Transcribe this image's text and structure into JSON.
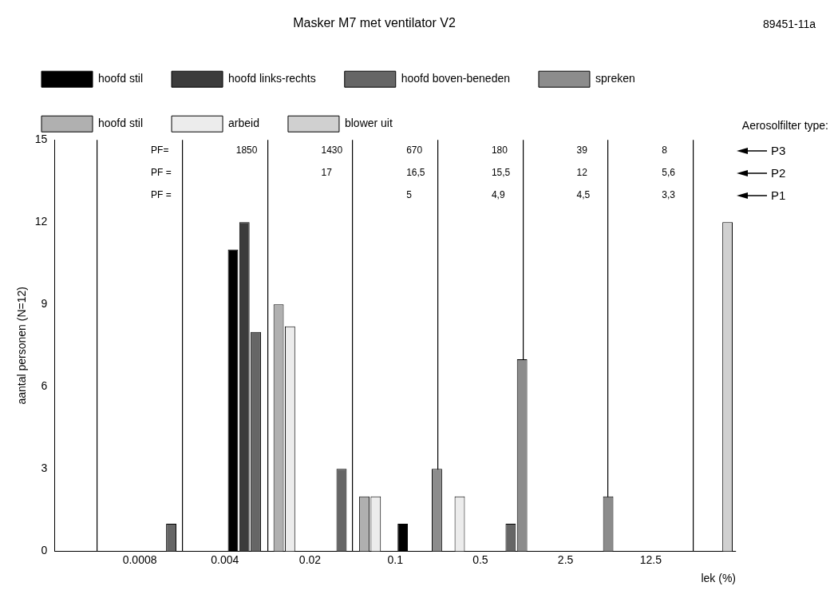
{
  "chart_data": {
    "type": "bar",
    "title": "Masker M7 met ventilator V2",
    "xlabel": "lek (%)",
    "ylabel": "aantal personen (N=12)",
    "log": "x",
    "xlim": [
      0.00016,
      62.5
    ],
    "xticks": [
      0.0008,
      0.004,
      0.02,
      0.1,
      0.5,
      2.5,
      12.5
    ],
    "ylim": [
      0,
      15
    ],
    "yticks": [
      0,
      3,
      6,
      9,
      12,
      15
    ],
    "x": [
      0.0018,
      0.0089,
      0.045,
      0.22,
      1.1,
      5.6,
      28
    ],
    "grid": "x",
    "legend": "top",
    "series": [
      {
        "name": "hoofd stil",
        "color": "#000000",
        "values": [
          null,
          11,
          null,
          1,
          null,
          null,
          null
        ]
      },
      {
        "name": "hoofd links-rechts",
        "color": "#3c3c3c",
        "values": [
          null,
          12,
          null,
          null,
          null,
          null,
          null
        ]
      },
      {
        "name": "hoofd boven-beneden",
        "color": "#666666",
        "values": [
          1,
          8,
          3,
          null,
          1,
          null,
          null
        ]
      },
      {
        "name": "spreken",
        "color": "#8c8c8c",
        "values": [
          null,
          null,
          null,
          3,
          7,
          2,
          null
        ]
      },
      {
        "name": "hoofd stil",
        "color": "#b0b0b0",
        "values": [
          null,
          9,
          2,
          null,
          null,
          null,
          null
        ]
      },
      {
        "name": "arbeid",
        "color": "#ececec",
        "values": [
          null,
          8.2,
          2,
          2,
          null,
          null,
          null
        ]
      },
      {
        "name": "blower uit",
        "color": "#d0d0d0",
        "values": [
          null,
          null,
          null,
          null,
          null,
          null,
          12
        ]
      }
    ],
    "annotations": [
      "89451-11a",
      "Aerosolfilter type:",
      "PF=",
      "1850",
      "1430",
      "670",
      "180",
      "39",
      "8",
      "P3",
      "PF =",
      "17",
      "16,5",
      "15,5",
      "12",
      "5,6",
      "P2",
      "PF =",
      "5",
      "4,9",
      "4,5",
      "3,3",
      "P1"
    ]
  }
}
